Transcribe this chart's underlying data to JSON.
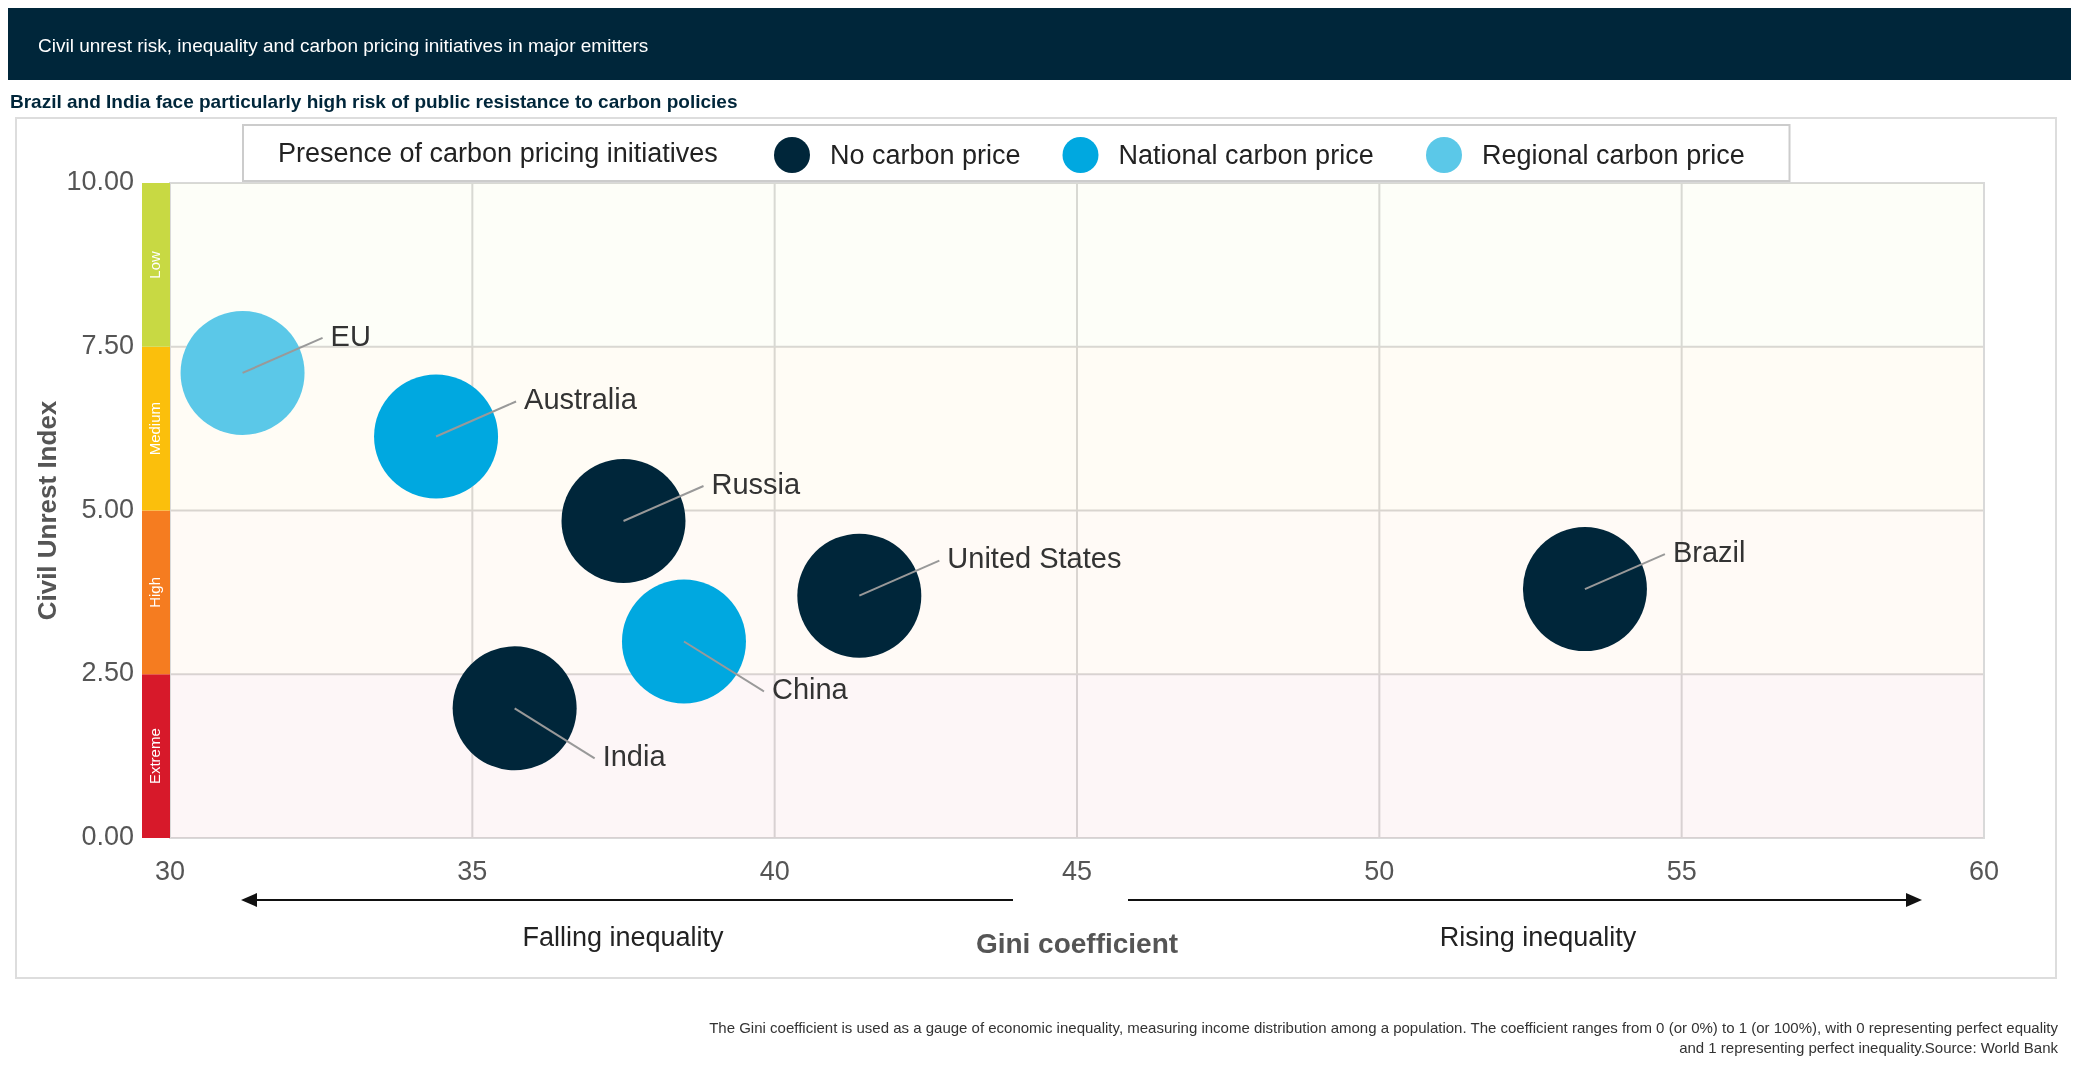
{
  "chart_data": {
    "type": "scatter",
    "title": "Civil unrest risk, inequality and carbon pricing initiatives in major emitters",
    "subtitle": "Brazil and India face particularly high risk of public resistance to carbon policies",
    "xlabel": "Gini coefficient",
    "ylabel": "Civil Unrest Index",
    "legend_title": "Presence of carbon pricing initiatives",
    "legend": "top",
    "grid": true,
    "marker": "circle",
    "xlim": [
      30,
      60
    ],
    "xticks": [
      30,
      35,
      40,
      45,
      50,
      55,
      60
    ],
    "ylim": [
      0,
      10
    ],
    "yticks": [
      {
        "value": 0,
        "label": "0.00"
      },
      {
        "value": 2.5,
        "label": "2.50"
      },
      {
        "value": 5,
        "label": "5.00"
      },
      {
        "value": 7.5,
        "label": "7.50"
      },
      {
        "value": 10,
        "label": "10.00"
      }
    ],
    "series": [
      {
        "name": "No carbon price",
        "color": "#00263a",
        "x": [
          37.5,
          41.4,
          53.4,
          35.7
        ],
        "values": [
          4.84,
          3.7,
          3.8,
          1.98
        ]
      },
      {
        "name": "National carbon price",
        "color": "#00a8e0",
        "x": [
          34.4,
          38.5
        ],
        "values": [
          6.13,
          3.0
        ]
      },
      {
        "name": "Regional carbon price",
        "color": "#5bc8e8",
        "x": [
          31.2
        ],
        "values": [
          7.1
        ]
      }
    ],
    "bands": [
      {
        "axis": "y",
        "from": 0,
        "to": 2.5,
        "label": "Extreme",
        "color": "#d7192a"
      },
      {
        "axis": "y",
        "from": 2.5,
        "to": 5,
        "label": "High",
        "color": "#f57c20"
      },
      {
        "axis": "y",
        "from": 5,
        "to": 7.5,
        "label": "Medium",
        "color": "#fbbf0c"
      },
      {
        "axis": "y",
        "from": 7.5,
        "to": 10,
        "label": "Low",
        "color": "#c8d943"
      }
    ],
    "annotations": [
      {
        "text": "EU",
        "x": 31.2,
        "y": 7.1
      },
      {
        "text": "Australia",
        "x": 34.4,
        "y": 6.13
      },
      {
        "text": "Russia",
        "x": 37.5,
        "y": 4.84
      },
      {
        "text": "United States",
        "x": 41.4,
        "y": 3.7
      },
      {
        "text": "Brazil",
        "x": 53.4,
        "y": 3.8
      },
      {
        "text": "China",
        "x": 38.5,
        "y": 3.0
      },
      {
        "text": "India",
        "x": 35.7,
        "y": 1.98
      },
      "Falling inequality",
      "Rising inequality",
      "The Gini coefficient is used as a gauge of economic inequality, measuring income distribution among a population. The coefficient ranges from 0 (or 0%) to 1 (or 100%), with 0 representing perfect equality and 1 representing perfect inequality.Source: World Bank"
    ]
  }
}
